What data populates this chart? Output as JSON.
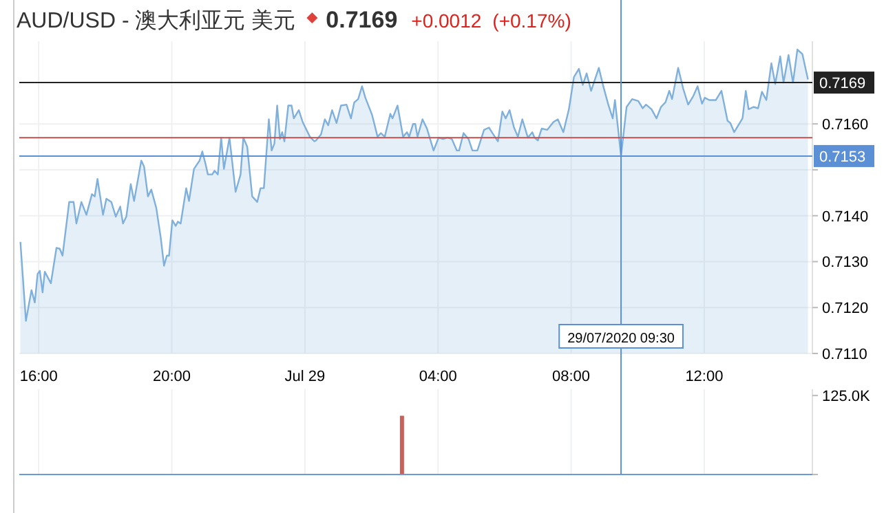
{
  "chart_data": [
    {
      "type": "area",
      "title": "AUD/USD - 澳大利亚元 美元",
      "annotations": [
        "0.7169",
        "+0.0012",
        "(+0.17%)"
      ],
      "series": [
        {
          "color": "#7fb0dc",
          "x": [
            "2020-07-28T15:27",
            "2020-07-28T15:37",
            "2020-07-28T15:47",
            "2020-07-28T15:53",
            "2020-07-28T15:58",
            "2020-07-28T16:02",
            "2020-07-28T16:07",
            "2020-07-28T16:11",
            "2020-07-28T16:22",
            "2020-07-28T16:32",
            "2020-07-28T16:38",
            "2020-07-28T16:43",
            "2020-07-28T16:55",
            "2020-07-28T17:03",
            "2020-07-28T17:08",
            "2020-07-28T17:17",
            "2020-07-28T17:26",
            "2020-07-28T17:36",
            "2020-07-28T17:41",
            "2020-07-28T17:46",
            "2020-07-28T17:56",
            "2020-07-28T18:02",
            "2020-07-28T18:11",
            "2020-07-28T18:19",
            "2020-07-28T18:27",
            "2020-07-28T18:32",
            "2020-07-28T18:38",
            "2020-07-28T18:46",
            "2020-07-28T18:52",
            "2020-07-28T19:05",
            "2020-07-28T19:10",
            "2020-07-28T19:17",
            "2020-07-28T19:23",
            "2020-07-28T19:32",
            "2020-07-28T19:40",
            "2020-07-28T19:46",
            "2020-07-28T19:51",
            "2020-07-28T19:55",
            "2020-07-28T20:01",
            "2020-07-28T20:07",
            "2020-07-28T20:11",
            "2020-07-28T20:16",
            "2020-07-28T20:26",
            "2020-07-28T20:31",
            "2020-07-28T20:40",
            "2020-07-28T20:50",
            "2020-07-28T20:55",
            "2020-07-28T21:01",
            "2020-07-28T21:05",
            "2020-07-28T21:13",
            "2020-07-28T21:17",
            "2020-07-28T21:23",
            "2020-07-28T21:29",
            "2020-07-28T21:34",
            "2020-07-28T21:44",
            "2020-07-28T21:55",
            "2020-07-28T22:04",
            "2020-07-28T22:09",
            "2020-07-28T22:16",
            "2020-07-28T22:25",
            "2020-07-28T22:34",
            "2020-07-28T22:40",
            "2020-07-28T22:46",
            "2020-07-28T22:55",
            "2020-07-28T23:00",
            "2020-07-28T23:05",
            "2020-07-28T23:10",
            "2020-07-28T23:15",
            "2020-07-28T23:19",
            "2020-07-28T23:23",
            "2020-07-28T23:30",
            "2020-07-28T23:36",
            "2020-07-28T23:40",
            "2020-07-28T23:49",
            "2020-07-28T23:56",
            "2020-07-29T00:09",
            "2020-07-29T00:17",
            "2020-07-29T00:20",
            "2020-07-29T00:29",
            "2020-07-29T00:36",
            "2020-07-29T00:42",
            "2020-07-29T00:49",
            "2020-07-29T00:57",
            "2020-07-29T01:05",
            "2020-07-29T01:15",
            "2020-07-29T01:23",
            "2020-07-29T01:29",
            "2020-07-29T01:36",
            "2020-07-29T01:43",
            "2020-07-29T01:49",
            "2020-07-29T02:01",
            "2020-07-29T02:11",
            "2020-07-29T02:17",
            "2020-07-29T02:24",
            "2020-07-29T02:34",
            "2020-07-29T02:38",
            "2020-07-29T02:47",
            "2020-07-29T02:57",
            "2020-07-29T03:04",
            "2020-07-29T03:08",
            "2020-07-29T03:15",
            "2020-07-29T03:19",
            "2020-07-29T03:23",
            "2020-07-29T03:32",
            "2020-07-29T03:40",
            "2020-07-29T03:52",
            "2020-07-29T04:01",
            "2020-07-29T04:09",
            "2020-07-29T04:17",
            "2020-07-29T04:25",
            "2020-07-29T04:34",
            "2020-07-29T04:38",
            "2020-07-29T04:46",
            "2020-07-29T04:55",
            "2020-07-29T05:02",
            "2020-07-29T05:11",
            "2020-07-29T05:23",
            "2020-07-29T05:32",
            "2020-07-29T05:37",
            "2020-07-29T05:48",
            "2020-07-29T05:56",
            "2020-07-29T06:02",
            "2020-07-29T06:09",
            "2020-07-29T06:17",
            "2020-07-29T06:24",
            "2020-07-29T06:32",
            "2020-07-29T06:42",
            "2020-07-29T06:50",
            "2020-07-29T06:54",
            "2020-07-29T07:00",
            "2020-07-29T07:07",
            "2020-07-29T07:17",
            "2020-07-29T07:28",
            "2020-07-29T07:36",
            "2020-07-29T07:46",
            "2020-07-29T07:56",
            "2020-07-29T08:05",
            "2020-07-29T08:11",
            "2020-07-29T08:14",
            "2020-07-29T08:21",
            "2020-07-29T08:28",
            "2020-07-29T08:36",
            "2020-07-29T08:50",
            "2020-07-29T08:58",
            "2020-07-29T09:07",
            "2020-07-29T09:15",
            "2020-07-29T09:19",
            "2020-07-29T09:30",
            "2020-07-29T09:40",
            "2020-07-29T09:50",
            "2020-07-29T10:01",
            "2020-07-29T10:09",
            "2020-07-29T10:15",
            "2020-07-29T10:25",
            "2020-07-29T10:34",
            "2020-07-29T10:42",
            "2020-07-29T10:50",
            "2020-07-29T10:57",
            "2020-07-29T11:02",
            "2020-07-29T11:13",
            "2020-07-29T11:22",
            "2020-07-29T11:31",
            "2020-07-29T11:40",
            "2020-07-29T11:48",
            "2020-07-29T11:56",
            "2020-07-29T12:01",
            "2020-07-29T12:09",
            "2020-07-29T12:21",
            "2020-07-29T12:31",
            "2020-07-29T12:42",
            "2020-07-29T12:47",
            "2020-07-29T12:54",
            "2020-07-29T13:09",
            "2020-07-29T13:15",
            "2020-07-29T13:20",
            "2020-07-29T13:29",
            "2020-07-29T13:37",
            "2020-07-29T13:44",
            "2020-07-29T13:52",
            "2020-07-29T14:01",
            "2020-07-29T14:08",
            "2020-07-29T14:17",
            "2020-07-29T14:23",
            "2020-07-29T14:32",
            "2020-07-29T14:40",
            "2020-07-29T14:48",
            "2020-07-29T14:57",
            "2020-07-29T15:07"
          ],
          "values": [
            0.71343,
            0.71171,
            0.71238,
            0.71211,
            0.71273,
            0.7128,
            0.71233,
            0.71278,
            0.71253,
            0.7133,
            0.71328,
            0.71313,
            0.7143,
            0.7143,
            0.71383,
            0.7143,
            0.71402,
            0.71447,
            0.71442,
            0.7148,
            0.71402,
            0.71437,
            0.7143,
            0.71398,
            0.7142,
            0.71383,
            0.71398,
            0.71469,
            0.71432,
            0.7152,
            0.71507,
            0.71442,
            0.71457,
            0.71417,
            0.71353,
            0.71291,
            0.71313,
            0.71313,
            0.7139,
            0.71378,
            0.71387,
            0.71383,
            0.7146,
            0.71432,
            0.71502,
            0.7152,
            0.7154,
            0.71512,
            0.7149,
            0.7149,
            0.71498,
            0.7149,
            0.7157,
            0.71502,
            0.7157,
            0.71452,
            0.7149,
            0.7157,
            0.7155,
            0.71442,
            0.7143,
            0.7146,
            0.7146,
            0.7161,
            0.71542,
            0.71557,
            0.7164,
            0.71567,
            0.71582,
            0.71562,
            0.7164,
            0.7164,
            0.71612,
            0.7163,
            0.71604,
            0.71572,
            0.71562,
            0.71564,
            0.71577,
            0.7161,
            0.71597,
            0.7163,
            0.71602,
            0.7164,
            0.71642,
            0.71612,
            0.71647,
            0.71654,
            0.71682,
            0.71657,
            0.7162,
            0.71572,
            0.7158,
            0.71572,
            0.71622,
            0.71612,
            0.7164,
            0.71572,
            0.71582,
            0.71572,
            0.716,
            0.716,
            0.71572,
            0.7161,
            0.7159,
            0.71542,
            0.7157,
            0.71567,
            0.7157,
            0.71567,
            0.71542,
            0.71542,
            0.7158,
            0.71567,
            0.71542,
            0.71542,
            0.71587,
            0.71592,
            0.71582,
            0.71562,
            0.71627,
            0.71612,
            0.7163,
            0.71592,
            0.71572,
            0.7161,
            0.7157,
            0.71582,
            0.7157,
            0.71564,
            0.7159,
            0.71587,
            0.71604,
            0.7161,
            0.71582,
            0.71632,
            0.71702,
            0.71714,
            0.7172,
            0.71685,
            0.7171,
            0.71672,
            0.71722,
            0.71682,
            0.71642,
            0.71612,
            0.71652,
            0.7153,
            0.71637,
            0.71654,
            0.7165,
            0.71634,
            0.71642,
            0.71632,
            0.71612,
            0.71637,
            0.71647,
            0.71672,
            0.71654,
            0.71722,
            0.71677,
            0.71642,
            0.7166,
            0.71682,
            0.71644,
            0.71657,
            0.71652,
            0.71652,
            0.71672,
            0.71607,
            0.71602,
            0.71582,
            0.71612,
            0.71672,
            0.71632,
            0.71637,
            0.71634,
            0.7167,
            0.71652,
            0.71732,
            0.71687,
            0.71747,
            0.7169,
            0.7175,
            0.7169,
            0.71762,
            0.71752,
            0.71697
          ]
        }
      ],
      "xlim": [
        "2020-07-28T15:25",
        "2020-07-29T15:15"
      ],
      "ylim": [
        0.711,
        0.7178
      ],
      "xticks": [
        {
          "value": "2020-07-28T16:00",
          "label": "16:00"
        },
        {
          "value": "2020-07-28T20:00",
          "label": "20:00"
        },
        {
          "value": "2020-07-29",
          "label": "Jul 29"
        },
        {
          "value": "2020-07-29T04:00",
          "label": "04:00"
        },
        {
          "value": "2020-07-29T08:00",
          "label": "08:00"
        },
        {
          "value": "2020-07-29T12:00",
          "label": "12:00"
        }
      ],
      "yticks": [
        {
          "value": 0.711,
          "label": "0.7110"
        },
        {
          "value": 0.712,
          "label": "0.7120"
        },
        {
          "value": 0.713,
          "label": "0.7130"
        },
        {
          "value": 0.714,
          "label": "0.7140"
        },
        {
          "value": 0.715,
          "label": null
        },
        {
          "value": 0.716,
          "label": "0.7160"
        }
      ],
      "grid": true,
      "ref_lines": [
        {
          "axis": "y",
          "value": 0.7169,
          "label": "0.7169",
          "color": "#222222"
        },
        {
          "axis": "y",
          "value": 0.7157,
          "color": "#c0504d"
        },
        {
          "axis": "y",
          "value": 0.7153,
          "label": "0.7153",
          "color": "#5b8fd6"
        },
        {
          "axis": "x",
          "value": "2020-07-29T09:30",
          "label": "29/07/2020 09:30",
          "color": "#5b8fd6"
        }
      ]
    },
    {
      "type": "bar",
      "x": [
        "2020-07-29T02:55"
      ],
      "values": [
        93000
      ],
      "color": "#c9605a",
      "xlim": [
        "2020-07-28T15:25",
        "2020-07-29T15:15"
      ],
      "ylim": [
        0,
        135000
      ],
      "yticks": [
        {
          "value": 0,
          "label": null
        },
        {
          "value": 125000,
          "label": "125.0K"
        }
      ],
      "xticks": [
        {
          "value": "2020-07-28T16:00",
          "label": null
        },
        {
          "value": "2020-07-28T20:00",
          "label": null
        },
        {
          "value": "2020-07-29",
          "label": null
        },
        {
          "value": "2020-07-29T04:00",
          "label": null
        },
        {
          "value": "2020-07-29T08:00",
          "label": null
        },
        {
          "value": "2020-07-29T12:00",
          "label": null
        }
      ],
      "tick_labels": "y",
      "grid": "x",
      "ref_lines": [
        {
          "axis": "x",
          "value": "2020-07-29T09:30",
          "color": "#5b8fd6"
        }
      ]
    }
  ]
}
